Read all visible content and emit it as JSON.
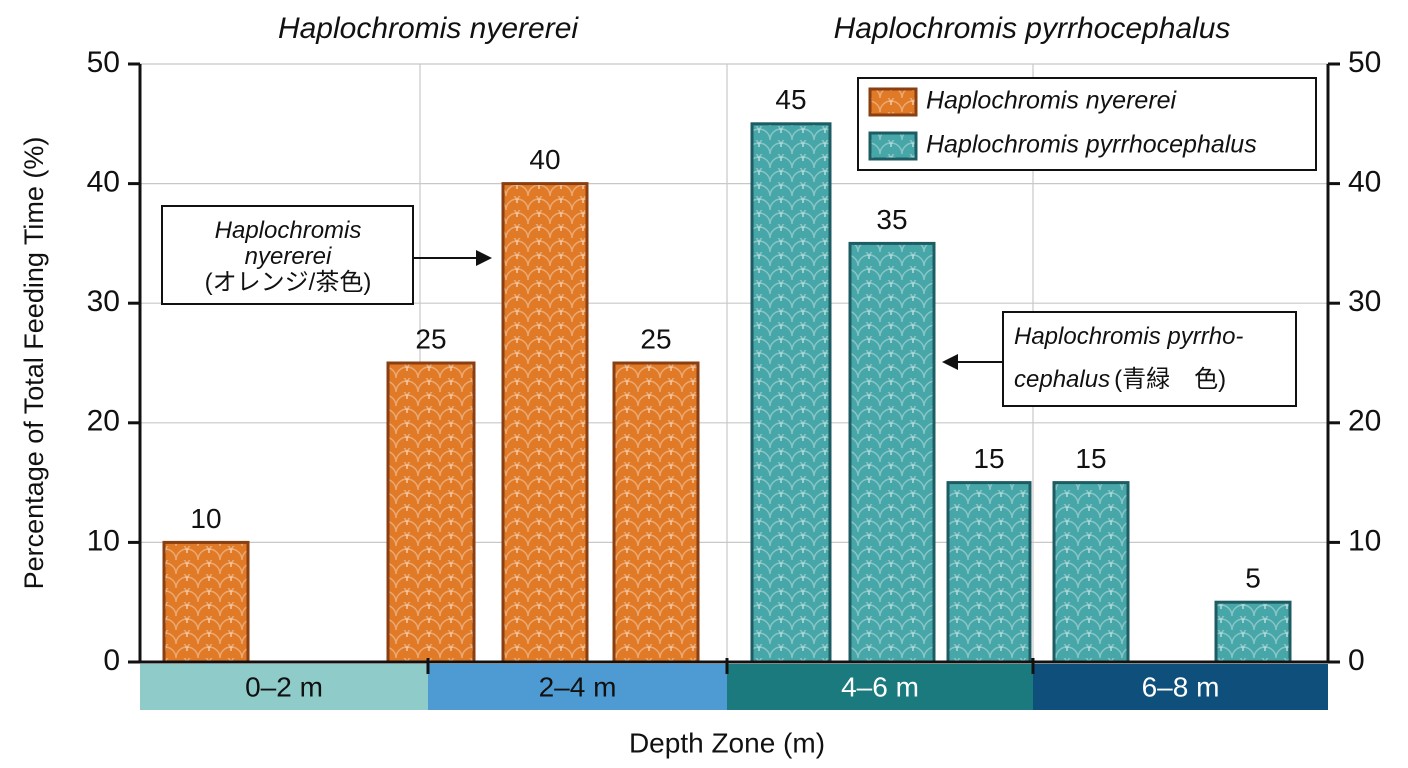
{
  "chart_data": {
    "type": "bar",
    "y_label": "Percentage of Total Feeding Time (%)",
    "x_label": "Depth Zone (m)",
    "categories": [
      null,
      null,
      null,
      null,
      null,
      null,
      null,
      null,
      null
    ],
    "series": [
      {
        "name": "Haplochromis nyererei",
        "color": "#e07a26",
        "edge": "#8a3f12",
        "values": [
          10,
          25,
          40,
          25,
          null,
          null,
          null,
          null,
          null
        ]
      },
      {
        "name": "Haplochromis pyrrhocephalus",
        "color": "#47a6a8",
        "edge": "#1d5c63",
        "values": [
          null,
          null,
          null,
          null,
          45,
          35,
          15,
          15,
          5
        ]
      }
    ],
    "ylim": [
      0,
      50
    ],
    "yticks": [
      0,
      10,
      20,
      30,
      40,
      50
    ],
    "y2lim": [
      0,
      50
    ],
    "y2ticks": [
      0,
      10,
      20,
      30,
      40,
      50
    ],
    "grid": true,
    "legend": "upper right",
    "zones": [
      {
        "label": "0–2 m",
        "color": "#8ecbc9",
        "text_color": "#111111"
      },
      {
        "label": "2–4 m",
        "color": "#4e9bd3",
        "text_color": "#111111"
      },
      {
        "label": "4–6 m",
        "color": "#1b7a7e",
        "text_color": "#ffffff"
      },
      {
        "label": "6–8 m",
        "color": "#0e4f7c",
        "text_color": "#ffffff"
      }
    ],
    "annotations": [
      {
        "lines": [
          [
            {
              "text": "Haplochromis",
              "italic": true
            }
          ],
          [
            {
              "text": "nyererei",
              "italic": true
            }
          ],
          [
            {
              "text": "(オレンジ/茶色)",
              "italic": false
            }
          ]
        ]
      },
      {
        "lines": [
          [
            {
              "text": "Haplochromis pyrrho-",
              "italic": true
            }
          ],
          [
            {
              "text": "cephalus",
              "italic": true
            },
            {
              "text": "(青緑　色)",
              "italic": false
            }
          ]
        ]
      }
    ]
  }
}
